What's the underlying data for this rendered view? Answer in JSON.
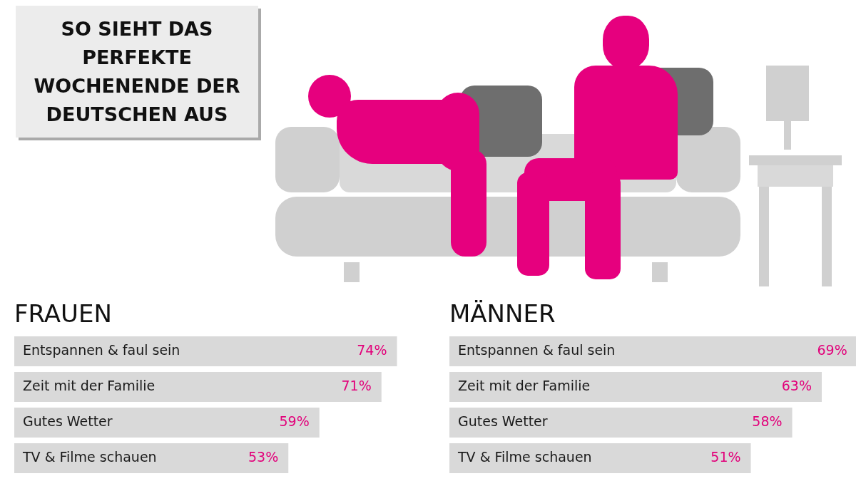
{
  "chart_data": [
    {
      "type": "other",
      "title": "SO SIEHT DAS PERFEKTE WOCHENENDE DER DEUTSCHEN AUS"
    },
    {
      "type": "bar",
      "title": "FRAUEN",
      "orientation": "horizontal",
      "categories": [
        "Entspannen & faul sein",
        "Zeit mit der Familie",
        "Gutes Wetter",
        "TV & Filme schauen"
      ],
      "values": [
        74,
        71,
        59,
        53
      ],
      "value_labels": [
        "74%",
        "71%",
        "59%",
        "53%"
      ],
      "color": "#d9d9d9",
      "tick_labels": false
    },
    {
      "type": "bar",
      "title": "MÄNNER",
      "orientation": "horizontal",
      "categories": [
        "Entspannen & faul sein",
        "Zeit mit der Familie",
        "Gutes Wetter",
        "TV & Filme schauen"
      ],
      "values": [
        69,
        63,
        58,
        51
      ],
      "value_labels": [
        "69%",
        "63%",
        "58%",
        "51%"
      ],
      "color": "#d9d9d9",
      "tick_labels": false
    }
  ]
}
